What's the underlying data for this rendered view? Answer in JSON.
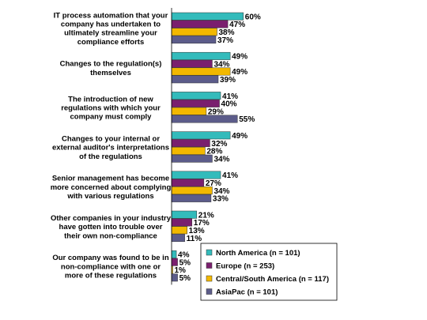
{
  "chart_data": {
    "type": "bar",
    "orientation": "horizontal",
    "categories": [
      "IT process automation that your company has undertaken to ultimately streamline your compliance efforts",
      "Changes to the regulation(s) themselves",
      "The introduction of new regulations with which your company must comply",
      "Changes to your internal or external auditor's interpretations of the regulations",
      "Senior management has become more concerned about complying with various regulations",
      "Other companies in your industry have gotten into trouble over their own non-compliance",
      "Our company was found to be in non-compliance with one or more of these regulations"
    ],
    "category_lines": [
      [
        "IT process automation that your",
        "company has undertaken to",
        "ultimately streamline your",
        "compliance efforts"
      ],
      [
        "Changes to the regulation(s)",
        "themselves"
      ],
      [
        "The introduction of new",
        "regulations with which your",
        "company must comply"
      ],
      [
        "Changes to your internal or",
        "external auditor's interpretations",
        "of the regulations"
      ],
      [
        "Senior management has become",
        "more concerned about complying",
        "with various regulations"
      ],
      [
        "Other companies in your industry",
        "have gotten into trouble over",
        "their own non-compliance"
      ],
      [
        "Our company was found to be in",
        "non-compliance with one or",
        "more of these regulations"
      ]
    ],
    "series": [
      {
        "name": "North America (n = 101)",
        "color": "#33BBBB",
        "values": [
          60,
          49,
          41,
          49,
          41,
          21,
          4
        ]
      },
      {
        "name": "Europe (n = 253)",
        "color": "#7A1F6E",
        "values": [
          47,
          34,
          40,
          32,
          27,
          17,
          5
        ]
      },
      {
        "name": "Central/South America (n = 117)",
        "color": "#F2B800",
        "values": [
          38,
          49,
          29,
          28,
          34,
          13,
          1
        ]
      },
      {
        "name": "AsiaPac (n = 101)",
        "color": "#5C5C8A",
        "values": [
          37,
          39,
          55,
          34,
          33,
          11,
          5
        ]
      }
    ],
    "value_suffix": "%",
    "xlim": [
      0,
      60
    ],
    "grid": false,
    "legend_position": "bottom-right"
  }
}
